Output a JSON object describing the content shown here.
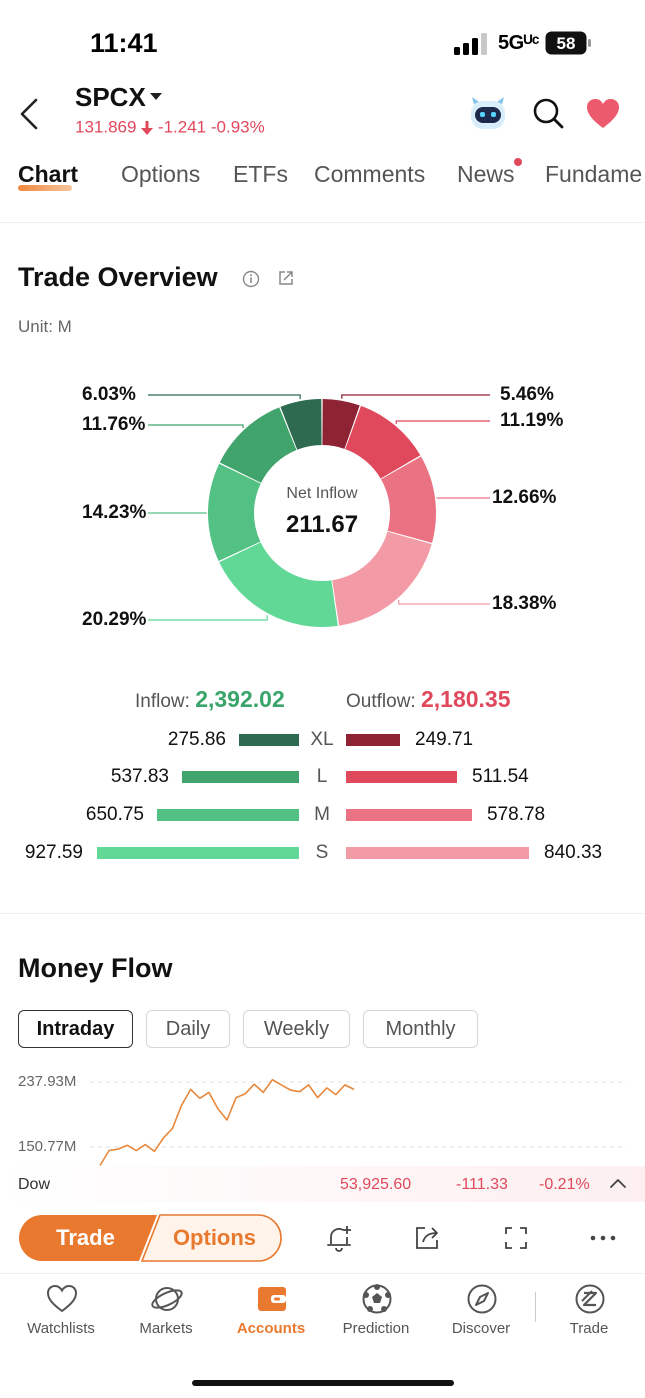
{
  "status_bar": {
    "time": "11:41",
    "network": "5Gᵁᶜ",
    "battery": "58"
  },
  "header": {
    "ticker": "SPCX",
    "price": "131.869",
    "change": "-1.241",
    "change_pct": "-0.93%"
  },
  "tabs": [
    "Chart",
    "Options",
    "ETFs",
    "Comments",
    "News",
    "Fundame"
  ],
  "active_tab": 0,
  "trade_overview": {
    "title": "Trade Overview",
    "unit": "Unit: M",
    "center_label": "Net Inflow",
    "center_value": "211.67",
    "left_labels": [
      "6.03%",
      "11.76%",
      "14.23%",
      "20.29%"
    ],
    "right_labels": [
      "5.46%",
      "11.19%",
      "12.66%",
      "18.38%"
    ],
    "inflow_label": "Inflow:",
    "inflow_total": "2,392.02",
    "outflow_label": "Outflow:",
    "outflow_total": "2,180.35",
    "rows": [
      {
        "size": "XL",
        "inflow": "275.86",
        "outflow": "249.71"
      },
      {
        "size": "L",
        "inflow": "537.83",
        "outflow": "511.54"
      },
      {
        "size": "M",
        "inflow": "650.75",
        "outflow": "578.78"
      },
      {
        "size": "S",
        "inflow": "927.59",
        "outflow": "840.33"
      }
    ]
  },
  "chart_data": {
    "type": "pie",
    "title": "Trade Overview",
    "slices": [
      {
        "label": "XL",
        "flow": "outflow",
        "percent": 5.46,
        "value": 249.71,
        "color": "#8e2333"
      },
      {
        "label": "L",
        "flow": "outflow",
        "percent": 11.19,
        "value": 511.54,
        "color": "#e0485c"
      },
      {
        "label": "M",
        "flow": "outflow",
        "percent": 12.66,
        "value": 578.78,
        "color": "#ea7282"
      },
      {
        "label": "S",
        "flow": "outflow",
        "percent": 18.38,
        "value": 840.33,
        "color": "#f29aa5"
      },
      {
        "label": "S",
        "flow": "inflow",
        "percent": 20.29,
        "value": 927.59,
        "color": "#62d896"
      },
      {
        "label": "M",
        "flow": "inflow",
        "percent": 14.23,
        "value": 650.75,
        "color": "#52c183"
      },
      {
        "label": "L",
        "flow": "inflow",
        "percent": 11.76,
        "value": 537.83,
        "color": "#41a46d"
      },
      {
        "label": "XL",
        "flow": "inflow",
        "percent": 6.03,
        "value": 275.86,
        "color": "#2d6a4f"
      }
    ]
  },
  "money_flow": {
    "title": "Money Flow",
    "periods": [
      "Intraday",
      "Daily",
      "Weekly",
      "Monthly"
    ],
    "active_period": 0,
    "y_top": "237.93M",
    "y_mid": "150.77M",
    "line_color": "#e8883c",
    "series_values": [
      128,
      144,
      150,
      151,
      148,
      152,
      147,
      161,
      178,
      205,
      230,
      214,
      226,
      200,
      189,
      215,
      224,
      233,
      226,
      239,
      236,
      225,
      227,
      232,
      219,
      228,
      223,
      232,
      230
    ]
  },
  "index_ticker": {
    "name": "Dow",
    "value": "53,925.60",
    "change": "-111.33",
    "change_pct": "-0.21%"
  },
  "actions": {
    "trade_label": "Trade",
    "options_label": "Options"
  },
  "bottom_nav": [
    {
      "label": "Watchlists",
      "icon": "heart-outline-icon"
    },
    {
      "label": "Markets",
      "icon": "planet-icon"
    },
    {
      "label": "Accounts",
      "icon": "wallet-icon"
    },
    {
      "label": "Prediction",
      "icon": "soccer-ball-icon"
    },
    {
      "label": "Discover",
      "icon": "compass-icon"
    },
    {
      "label": "Trade",
      "icon": "trade-circle-icon"
    }
  ],
  "active_nav": 2,
  "colors": {
    "accent": "#e8792f",
    "down_red": "#e0485c",
    "up_green": "#3aa56a"
  }
}
